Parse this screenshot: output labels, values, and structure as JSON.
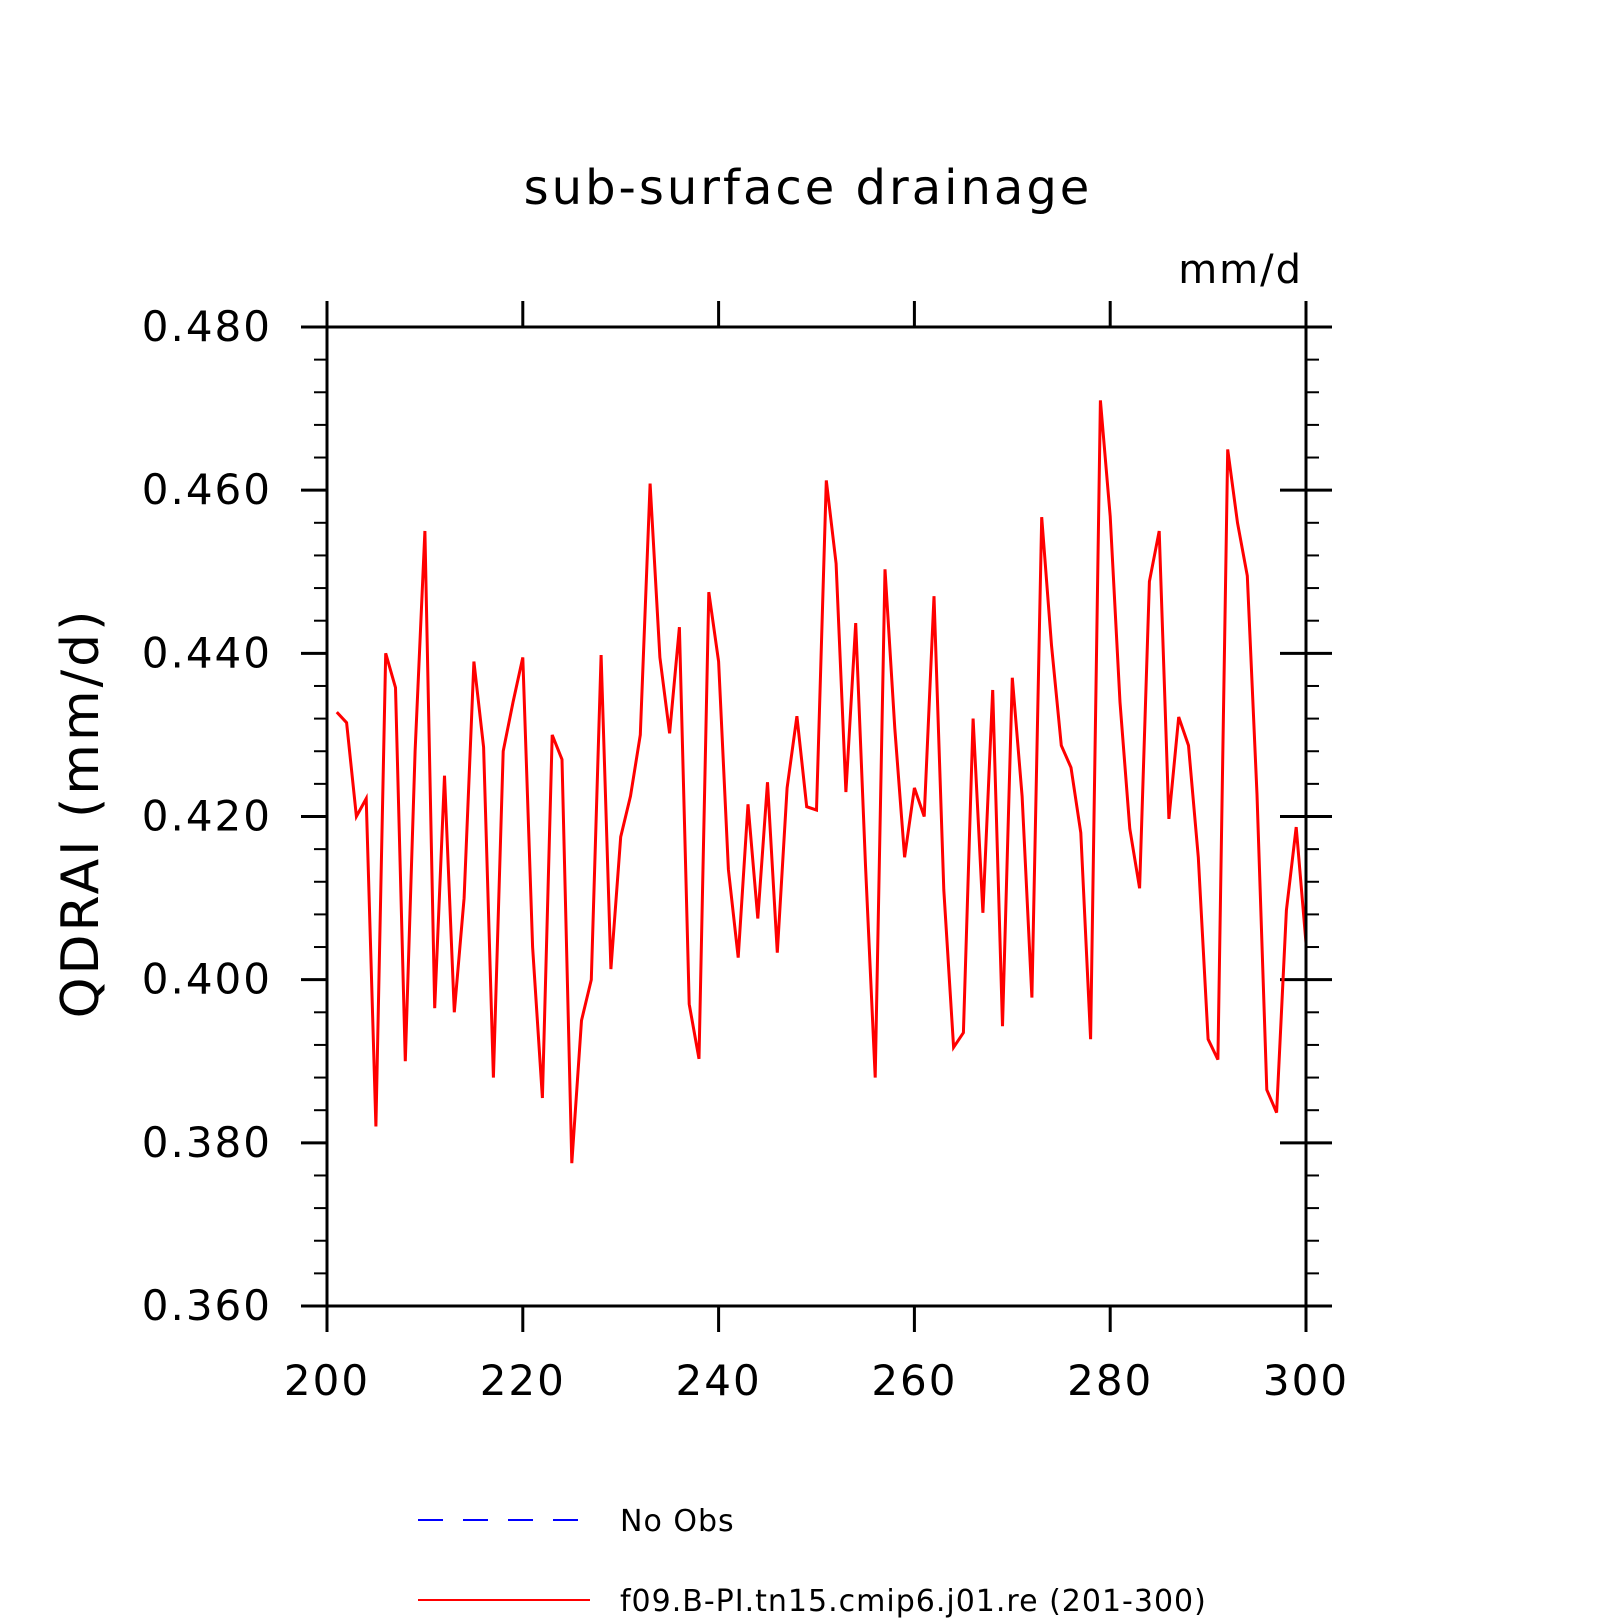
{
  "chart_data": {
    "type": "line",
    "title": "sub-surface drainage",
    "units_label": "mm/d",
    "xlabel": "",
    "ylabel": "QDRAI  (mm/d)",
    "xlim": [
      200,
      300
    ],
    "ylim": [
      0.36,
      0.48
    ],
    "x_ticks": [
      200,
      220,
      240,
      260,
      280,
      300
    ],
    "x_tick_labels": [
      "200",
      "220",
      "240",
      "260",
      "280",
      "300"
    ],
    "y_ticks": [
      0.36,
      0.38,
      0.4,
      0.42,
      0.44,
      0.46,
      0.48
    ],
    "y_tick_labels": [
      "0.360",
      "0.380",
      "0.400",
      "0.420",
      "0.440",
      "0.460",
      "0.480"
    ],
    "grid": false,
    "legend_position": "bottom-center",
    "series": [
      {
        "name": "No Obs",
        "color": "#0000ff",
        "dash": true,
        "x": [],
        "values": []
      },
      {
        "name": "f09.B-PI.tn15.cmip6.j01.re (201-300)",
        "color": "#ff0000",
        "dash": false,
        "x": [
          201,
          202,
          203,
          204,
          205,
          206,
          207,
          208,
          209,
          210,
          211,
          212,
          213,
          214,
          215,
          216,
          217,
          218,
          219,
          220,
          221,
          222,
          223,
          224,
          225,
          226,
          227,
          228,
          229,
          230,
          231,
          232,
          233,
          234,
          235,
          236,
          237,
          238,
          239,
          240,
          241,
          242,
          243,
          244,
          245,
          246,
          247,
          248,
          249,
          250,
          251,
          252,
          253,
          254,
          255,
          256,
          257,
          258,
          259,
          260,
          261,
          262,
          263,
          264,
          265,
          266,
          267,
          268,
          269,
          270,
          271,
          272,
          273,
          274,
          275,
          276,
          277,
          278,
          279,
          280,
          281,
          282,
          283,
          284,
          285,
          286,
          287,
          288,
          289,
          290,
          291,
          292,
          293,
          294,
          295,
          296,
          297,
          298,
          299,
          300
        ],
        "values": [
          0.4328,
          0.4315,
          0.42,
          0.4222,
          0.382,
          0.44,
          0.4358,
          0.39,
          0.428,
          0.455,
          0.3965,
          0.425,
          0.396,
          0.41,
          0.439,
          0.4285,
          0.388,
          0.428,
          0.434,
          0.4395,
          0.404,
          0.3855,
          0.43,
          0.427,
          0.3775,
          0.395,
          0.4,
          0.4398,
          0.4013,
          0.4175,
          0.4225,
          0.43,
          0.4608,
          0.4395,
          0.4302,
          0.4432,
          0.397,
          0.3903,
          0.4475,
          0.439,
          0.4135,
          0.4027,
          0.4215,
          0.4075,
          0.4242,
          0.4033,
          0.4235,
          0.4323,
          0.4212,
          0.4208,
          0.4612,
          0.451,
          0.423,
          0.4437,
          0.414,
          0.388,
          0.4503,
          0.4308,
          0.415,
          0.4235,
          0.42,
          0.447,
          0.411,
          0.3917,
          0.3935,
          0.432,
          0.4082,
          0.4355,
          0.3943,
          0.437,
          0.4225,
          0.3978,
          0.4567,
          0.441,
          0.4287,
          0.426,
          0.418,
          0.3927,
          0.471,
          0.4568,
          0.434,
          0.4185,
          0.4112,
          0.4488,
          0.455,
          0.4197,
          0.4322,
          0.4287,
          0.415,
          0.3927,
          0.3902,
          0.465,
          0.456,
          0.4495,
          0.4227,
          0.3865,
          0.3837,
          0.4085,
          0.4187,
          0.4045
        ]
      }
    ]
  }
}
